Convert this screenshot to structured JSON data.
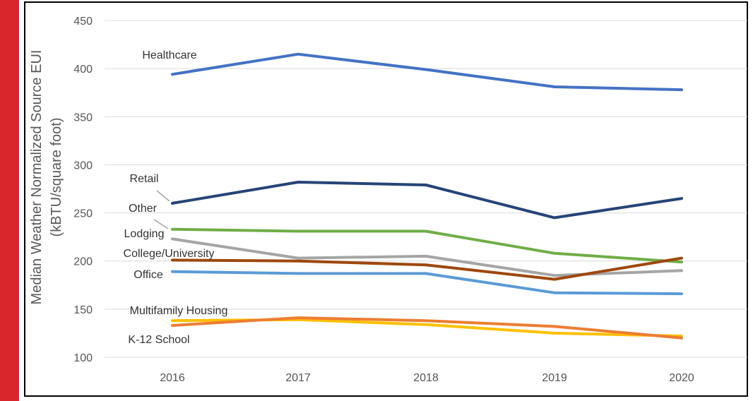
{
  "accent": "#d9262c",
  "chart_data": {
    "type": "line",
    "title": "",
    "xlabel": "",
    "ylabel": "Median Weather Normalized Source EUI",
    "ylabel_unit": "(kBTU/square foot)",
    "ylim": [
      100,
      450
    ],
    "y_ticks": [
      100,
      150,
      200,
      250,
      300,
      350,
      400,
      450
    ],
    "categories": [
      "2016",
      "2017",
      "2018",
      "2019",
      "2020"
    ],
    "grid": true,
    "legend": "inline-labels-left",
    "series": [
      {
        "name": "Healthcare",
        "color": "#4472c4",
        "values": [
          394,
          415,
          399,
          381,
          378
        ]
      },
      {
        "name": "Retail",
        "color": "#264478",
        "values": [
          260,
          282,
          279,
          245,
          265
        ]
      },
      {
        "name": "Other",
        "color": "#a5a5a5",
        "values": [
          223,
          203,
          205,
          185,
          190
        ]
      },
      {
        "name": "Lodging",
        "color": "#70ad47",
        "values": [
          233,
          231,
          231,
          208,
          199
        ]
      },
      {
        "name": "College/University",
        "color": "#9e480e",
        "values": [
          201,
          200,
          196,
          181,
          203
        ]
      },
      {
        "name": "Office",
        "color": "#5b9bd5",
        "values": [
          189,
          187,
          187,
          167,
          166
        ]
      },
      {
        "name": "Multifamily Housing",
        "color": "#ffc000",
        "values": [
          138,
          139,
          134,
          125,
          122
        ]
      },
      {
        "name": "K-12 School",
        "color": "#ed7d31",
        "values": [
          133,
          141,
          138,
          132,
          120
        ]
      }
    ]
  }
}
